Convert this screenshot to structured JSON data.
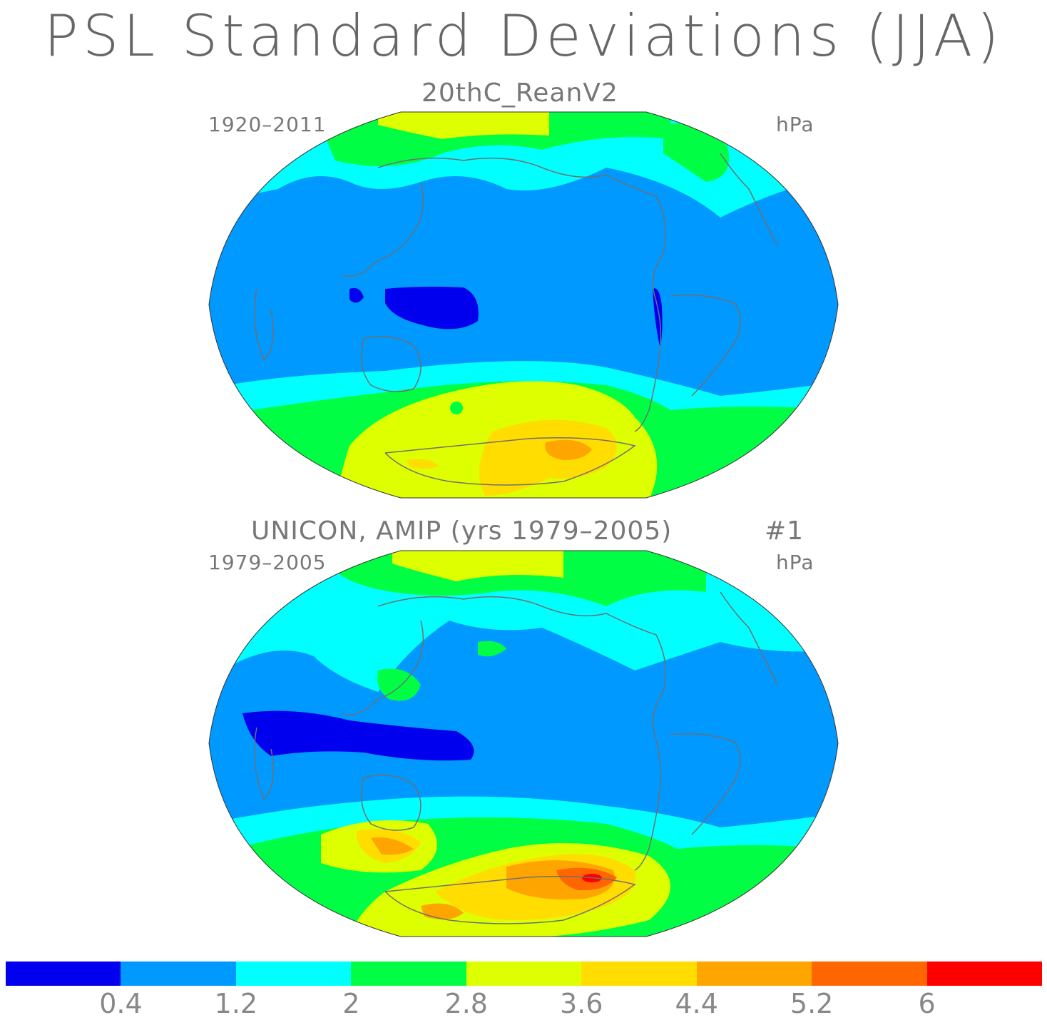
{
  "title": "PSL Standard Deviations (JJA)",
  "panels": [
    {
      "subtitle": "20thC_ReanV2",
      "years": "1920–2011",
      "units": "hPa"
    },
    {
      "subtitle": "UNICON, AMIP (yrs 1979–2005)",
      "run": "#1",
      "years": "1979–2005",
      "units": "hPa"
    }
  ],
  "colorbar": {
    "colors": [
      "#0000ee",
      "#0099ff",
      "#00ffff",
      "#00ff44",
      "#ddff00",
      "#ffdd00",
      "#ffa500",
      "#ff6600",
      "#ff0000"
    ],
    "labels": [
      "0.4",
      "1.2",
      "2",
      "2.8",
      "3.6",
      "4.4",
      "5.2",
      "6"
    ]
  },
  "colors": {
    "coastline": "#707070",
    "ocean_base": "#0099ff"
  }
}
